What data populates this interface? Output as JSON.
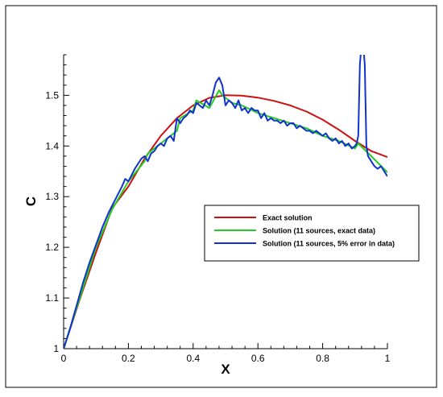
{
  "chart_data": {
    "type": "line",
    "title": "",
    "xlabel": "X",
    "ylabel": "C",
    "xlim": [
      0,
      1
    ],
    "ylim": [
      1.0,
      1.58
    ],
    "xticks": [
      0,
      0.2,
      0.4,
      0.6,
      0.8,
      1
    ],
    "xtick_labels": [
      "0",
      "0.2",
      "0.4",
      "0.6",
      "0.8",
      "1"
    ],
    "yticks": [
      1,
      1.1,
      1.2,
      1.3,
      1.4,
      1.5
    ],
    "ytick_labels": [
      "1",
      "1.1",
      "1.2",
      "1.3",
      "1.4",
      "1.5"
    ],
    "grid": false,
    "legend_position": "center-right",
    "series": [
      {
        "name": "Exact solution",
        "color": "#cc1111",
        "x": [
          0,
          0.05,
          0.1,
          0.15,
          0.2,
          0.25,
          0.3,
          0.35,
          0.4,
          0.45,
          0.5,
          0.55,
          0.6,
          0.65,
          0.7,
          0.75,
          0.8,
          0.85,
          0.9,
          0.95,
          1.0
        ],
        "y": [
          1.0,
          1.0975,
          1.19,
          1.2775,
          1.32,
          1.375,
          1.42,
          1.455,
          1.48,
          1.495,
          1.5,
          1.4995,
          1.4955,
          1.489,
          1.48,
          1.468,
          1.452,
          1.432,
          1.41,
          1.39,
          1.378
        ]
      },
      {
        "name": "Solution (11 sources, exact data)",
        "color": "#22cc22",
        "x": [
          0,
          0.05,
          0.1,
          0.15,
          0.2,
          0.25,
          0.26,
          0.3,
          0.35,
          0.36,
          0.4,
          0.41,
          0.45,
          0.48,
          0.49,
          0.5,
          0.52,
          0.55,
          0.6,
          0.65,
          0.7,
          0.75,
          0.8,
          0.85,
          0.9,
          0.91,
          0.95,
          1.0
        ],
        "y": [
          1.0,
          1.1,
          1.2,
          1.275,
          1.33,
          1.37,
          1.385,
          1.405,
          1.43,
          1.455,
          1.47,
          1.49,
          1.475,
          1.51,
          1.5,
          1.495,
          1.485,
          1.48,
          1.465,
          1.455,
          1.445,
          1.435,
          1.42,
          1.41,
          1.395,
          1.405,
          1.38,
          1.348
        ]
      },
      {
        "name": "Solution (11 sources, 5% error in data)",
        "color": "#1133cc",
        "x": [
          0,
          0.02,
          0.04,
          0.06,
          0.08,
          0.1,
          0.12,
          0.14,
          0.16,
          0.18,
          0.19,
          0.2,
          0.22,
          0.24,
          0.25,
          0.26,
          0.27,
          0.28,
          0.29,
          0.3,
          0.31,
          0.32,
          0.33,
          0.34,
          0.35,
          0.36,
          0.37,
          0.38,
          0.39,
          0.4,
          0.41,
          0.42,
          0.43,
          0.44,
          0.45,
          0.46,
          0.47,
          0.48,
          0.49,
          0.5,
          0.51,
          0.52,
          0.53,
          0.54,
          0.55,
          0.56,
          0.57,
          0.58,
          0.59,
          0.6,
          0.61,
          0.62,
          0.63,
          0.64,
          0.65,
          0.66,
          0.67,
          0.68,
          0.69,
          0.7,
          0.71,
          0.72,
          0.73,
          0.74,
          0.75,
          0.76,
          0.77,
          0.78,
          0.79,
          0.8,
          0.81,
          0.82,
          0.83,
          0.84,
          0.85,
          0.86,
          0.87,
          0.88,
          0.89,
          0.9,
          0.905,
          0.91,
          0.915,
          0.92,
          0.925,
          0.93,
          0.935,
          0.94,
          0.95,
          0.96,
          0.97,
          0.98,
          0.99,
          1.0
        ],
        "y": [
          1.0,
          1.04,
          1.085,
          1.13,
          1.17,
          1.205,
          1.24,
          1.27,
          1.295,
          1.32,
          1.335,
          1.33,
          1.355,
          1.375,
          1.38,
          1.37,
          1.385,
          1.39,
          1.4,
          1.405,
          1.4,
          1.415,
          1.42,
          1.41,
          1.455,
          1.445,
          1.455,
          1.46,
          1.47,
          1.465,
          1.485,
          1.48,
          1.475,
          1.49,
          1.48,
          1.5,
          1.525,
          1.535,
          1.52,
          1.48,
          1.49,
          1.485,
          1.475,
          1.49,
          1.47,
          1.475,
          1.465,
          1.475,
          1.47,
          1.47,
          1.455,
          1.465,
          1.45,
          1.455,
          1.45,
          1.45,
          1.445,
          1.45,
          1.44,
          1.445,
          1.445,
          1.435,
          1.44,
          1.435,
          1.43,
          1.43,
          1.425,
          1.43,
          1.425,
          1.42,
          1.425,
          1.415,
          1.41,
          1.415,
          1.405,
          1.41,
          1.4,
          1.405,
          1.395,
          1.4,
          1.405,
          1.42,
          1.56,
          1.6,
          1.6,
          1.56,
          1.4,
          1.38,
          1.37,
          1.36,
          1.355,
          1.36,
          1.35,
          1.34
        ]
      }
    ]
  }
}
